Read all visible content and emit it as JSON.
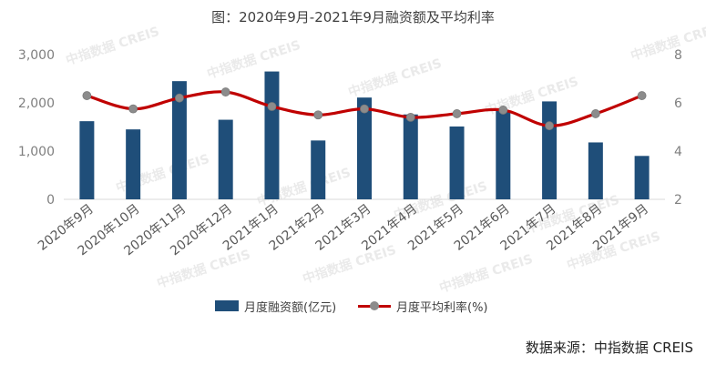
{
  "title": "图：2020年9月-2021年9月融资额及平均利率",
  "source": "数据来源：中指数据 CREIS",
  "watermark": "中指数据 CREIS",
  "colors": {
    "bar": "#1f4e79",
    "line": "#c00000",
    "marker": "#8c8c8c",
    "axis": "#d9d9d9"
  },
  "chart_data": {
    "type": "bar+line",
    "categories": [
      "2020年9月",
      "2020年10月",
      "2020年11月",
      "2020年12月",
      "2021年1月",
      "2021年2月",
      "2021年3月",
      "2021年4月",
      "2021年5月",
      "2021年6月",
      "2021年7月",
      "2021年8月",
      "2021年9月"
    ],
    "series": [
      {
        "name": "月度融资额(亿元)",
        "type": "bar",
        "axis": "left",
        "values": [
          1620,
          1450,
          2450,
          1650,
          2650,
          1220,
          2110,
          1760,
          1510,
          1840,
          2030,
          1180,
          900
        ]
      },
      {
        "name": "月度平均利率(%)",
        "type": "line",
        "axis": "right",
        "values": [
          6.3,
          5.75,
          6.2,
          6.45,
          5.85,
          5.5,
          5.75,
          5.4,
          5.55,
          5.7,
          5.05,
          5.55,
          6.3
        ]
      }
    ],
    "y_left": {
      "lim": [
        0,
        3000
      ],
      "ticks": [
        "0",
        "1,000",
        "2,000",
        "3,000"
      ],
      "tick_values": [
        0,
        1000,
        2000,
        3000
      ]
    },
    "y_right": {
      "lim": [
        2,
        8
      ],
      "ticks": [
        "2",
        "4",
        "6",
        "8"
      ],
      "tick_values": [
        2,
        4,
        6,
        8
      ]
    },
    "legend": "bottom",
    "grid": false
  }
}
